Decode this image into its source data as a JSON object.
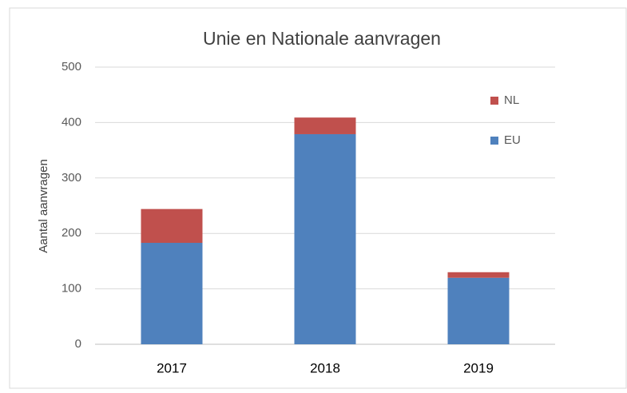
{
  "chart_data": {
    "type": "stacked_bar",
    "title": "Unie en Nationale aanvragen",
    "y_label": "Aantal aanvragen",
    "categories": [
      "2017",
      "2018",
      "2019"
    ],
    "series": [
      {
        "name": "EU",
        "color": "#4f81bd",
        "values": [
          183,
          379,
          120
        ]
      },
      {
        "name": "NL",
        "color": "#c0504d",
        "values": [
          61,
          30,
          10
        ]
      }
    ],
    "ylim": [
      0,
      500
    ],
    "yticks": [
      0,
      100,
      200,
      300,
      400,
      500
    ],
    "grid": true,
    "legend": "upper right"
  }
}
